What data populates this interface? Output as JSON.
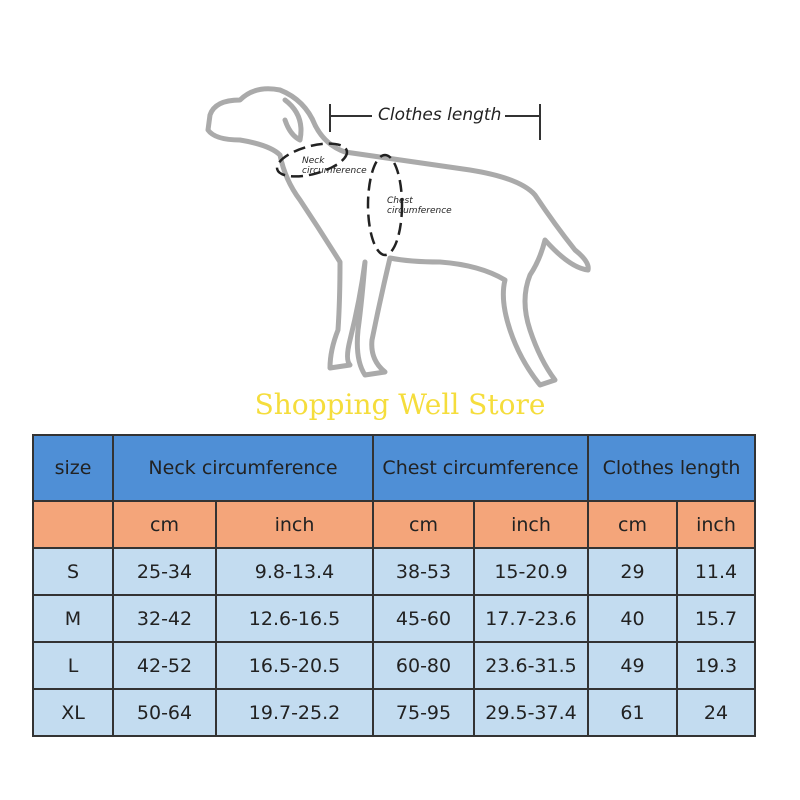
{
  "diagram": {
    "clothes_length": "Clothes length",
    "neck": "Neck circumference",
    "chest": "Chest circumference"
  },
  "watermark": "Shopping Well Store",
  "table": {
    "header": [
      "size",
      "Neck circumference",
      "Chest circumference",
      "Clothes length"
    ],
    "units": [
      "cm",
      "inch",
      "cm",
      "inch",
      "cm",
      "inch"
    ],
    "rows": [
      [
        "S",
        "25-34",
        "9.8-13.4",
        "38-53",
        "15-20.9",
        "29",
        "11.4"
      ],
      [
        "M",
        "32-42",
        "12.6-16.5",
        "45-60",
        "17.7-23.6",
        "40",
        "15.7"
      ],
      [
        "L",
        "42-52",
        "16.5-20.5",
        "60-80",
        "23.6-31.5",
        "49",
        "19.3"
      ],
      [
        "XL",
        "50-64",
        "19.7-25.2",
        "75-95",
        "29.5-37.4",
        "61",
        "24"
      ]
    ]
  }
}
